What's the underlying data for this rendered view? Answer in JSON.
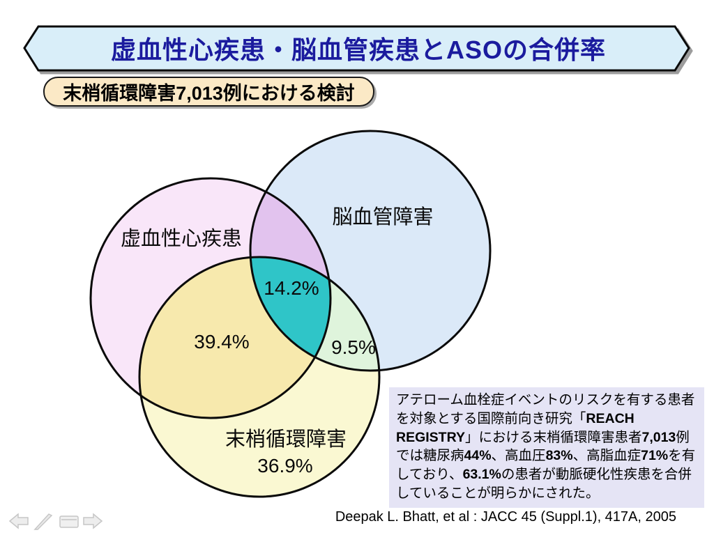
{
  "slide": {
    "title": "虚血性心疾患・脳血管疾患とASOの合併率",
    "subtitle": "末梢循環障害7,013例における検討",
    "citation": "Deepak L. Bhatt, et al : JACC 45 (Suppl.1), 417A, 2005"
  },
  "colors": {
    "banner_fill": "#d9eef9",
    "banner_border": "#0a0a0a",
    "title_text": "#1b1b9e",
    "badge_fill": "#fbe9c6",
    "info_box_bg": "#e5e4f5",
    "shadow": "#9c9c9c"
  },
  "venn": {
    "sets": [
      {
        "id": "ihd",
        "label": "虚血性心疾患",
        "color": "#f9e6f9"
      },
      {
        "id": "cvd",
        "label": "脳血管障害",
        "color": "#dbe9f8"
      },
      {
        "id": "pad",
        "label": "末梢循環障害",
        "value": "36.9%",
        "color": "#faf8d2"
      }
    ],
    "overlaps": {
      "ihd_cvd": {
        "sets": "虚血性心疾患∩脳血管障害",
        "color": "#e2c3ee"
      },
      "ihd_pad": {
        "sets": "虚血性心疾患∩末梢循環障害",
        "value": "39.4%",
        "color": "#f7e9ad"
      },
      "cvd_pad": {
        "sets": "脳血管障害∩末梢循環障害",
        "value": "9.5%",
        "color": "#dff4dc"
      },
      "center": {
        "sets": "虚血性心疾患∩脳血管障害∩末梢循環障害",
        "value": "14.2%",
        "color": "#2fc5c8"
      }
    }
  },
  "chart_data": {
    "type": "venn",
    "title": "虚血性心疾患・脳血管疾患とASOの合併率",
    "subtitle": "末梢循環障害7,013例における検討",
    "sets": [
      "虚血性心疾患",
      "脳血管障害",
      "末梢循環障害"
    ],
    "values": [
      {
        "region": "末梢循環障害",
        "value_pct": 36.9
      },
      {
        "region": "虚血性心疾患∩末梢循環障害",
        "value_pct": 39.4
      },
      {
        "region": "脳血管障害∩末梢循環障害",
        "value_pct": 9.5
      },
      {
        "region": "虚血性心疾患∩脳血管障害∩末梢循環障害",
        "value_pct": 14.2
      }
    ]
  },
  "info_box": {
    "segments": [
      {
        "t": "アテローム血栓症イベントのリスクを有する患者を対象とする国際前向き研究「",
        "b": false
      },
      {
        "t": "REACH REGISTRY",
        "b": true
      },
      {
        "t": "」における末梢循環障害患者",
        "b": false
      },
      {
        "t": "7,013",
        "b": true
      },
      {
        "t": "例では糖尿病",
        "b": false
      },
      {
        "t": "44%",
        "b": true
      },
      {
        "t": "、高血圧",
        "b": false
      },
      {
        "t": "83%",
        "b": true
      },
      {
        "t": "、高脂血症",
        "b": false
      },
      {
        "t": "71%",
        "b": true
      },
      {
        "t": "を有しており、",
        "b": false
      },
      {
        "t": "63.1%",
        "b": true
      },
      {
        "t": "の患者が動脈硬化性疾患を合併していることが明らかにされた。",
        "b": false
      }
    ]
  }
}
